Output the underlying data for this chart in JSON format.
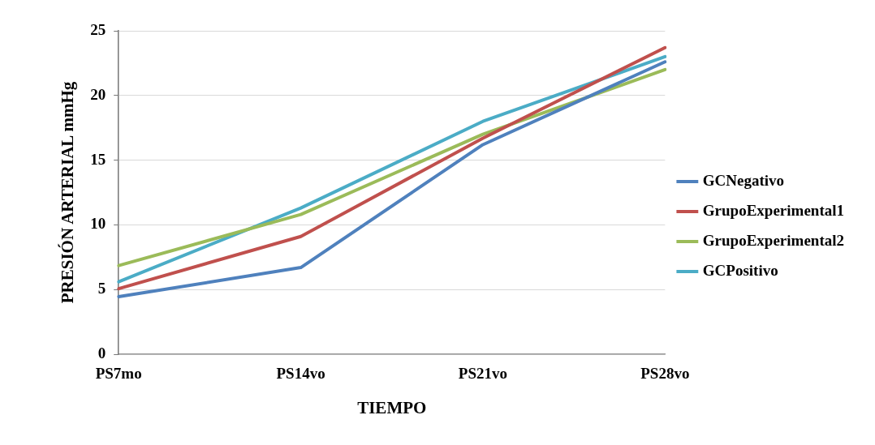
{
  "chart_data": {
    "type": "line",
    "xlabel": "TIEMPO",
    "ylabel": "PRESIÓN ARTERIAL mmHg",
    "categories": [
      "PS7mo",
      "PS14vo",
      "PS21vo",
      "PS28vo"
    ],
    "series": [
      {
        "name": "GCNegativo",
        "color": "#4f81bd",
        "values": [
          4.45,
          6.7,
          16.2,
          22.6
        ]
      },
      {
        "name": "GrupoExperimental1",
        "color": "#c0504d",
        "values": [
          5.07,
          9.1,
          16.7,
          23.7
        ]
      },
      {
        "name": "GrupoExperimental2",
        "color": "#9bbb59",
        "values": [
          6.85,
          10.8,
          17.0,
          22.0
        ]
      },
      {
        "name": "GCPositivo",
        "color": "#4bacc6",
        "values": [
          5.6,
          11.3,
          18.0,
          23.0
        ]
      }
    ],
    "ylim": [
      0,
      25
    ],
    "yticks": [
      0,
      5,
      10,
      15,
      20,
      25
    ],
    "grid": "y",
    "legend": "right",
    "marker": "none",
    "line_style": "solid"
  }
}
